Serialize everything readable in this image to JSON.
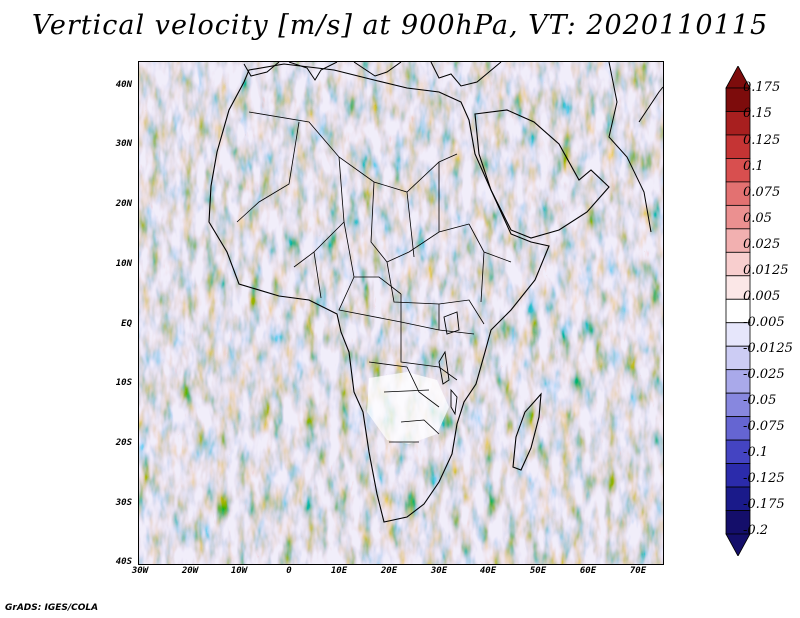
{
  "title": "Vertical velocity [m/s] at 900hPa, VT: 2020110115",
  "credit": "GrADS: IGES/COLA",
  "map": {
    "region": "Africa",
    "variable": "vertical velocity",
    "level": "900hPa",
    "valid_time": "2020110115",
    "lon_range": [
      -30,
      75
    ],
    "lat_range": [
      -40,
      45
    ],
    "lat_labels": [
      "40N",
      "30N",
      "20N",
      "10N",
      "EQ",
      "10S",
      "20S",
      "30S",
      "40S"
    ],
    "lon_labels": [
      "30W",
      "20W",
      "10W",
      "0",
      "10E",
      "20E",
      "30E",
      "40E",
      "50E",
      "60E",
      "70E"
    ]
  },
  "colorbar": {
    "labels": [
      "0.175",
      "0.15",
      "0.125",
      "0.1",
      "0.075",
      "0.05",
      "0.025",
      "0.0125",
      "0.005",
      "-0.005",
      "-0.0125",
      "-0.025",
      "-0.05",
      "-0.075",
      "-0.1",
      "-0.125",
      "-0.175",
      "-0.2"
    ],
    "colors": [
      "#7d0c0c",
      "#a81f1f",
      "#c53434",
      "#d84f4f",
      "#e37171",
      "#eb9090",
      "#f2b0b0",
      "#f8cece",
      "#fbe7e7",
      "#ffffff",
      "#e6e6fb",
      "#ccccf4",
      "#a9a9ea",
      "#8787df",
      "#6565d2",
      "#4444c2",
      "#2b2bab",
      "#1a1a8a",
      "#140e6a"
    ]
  }
}
